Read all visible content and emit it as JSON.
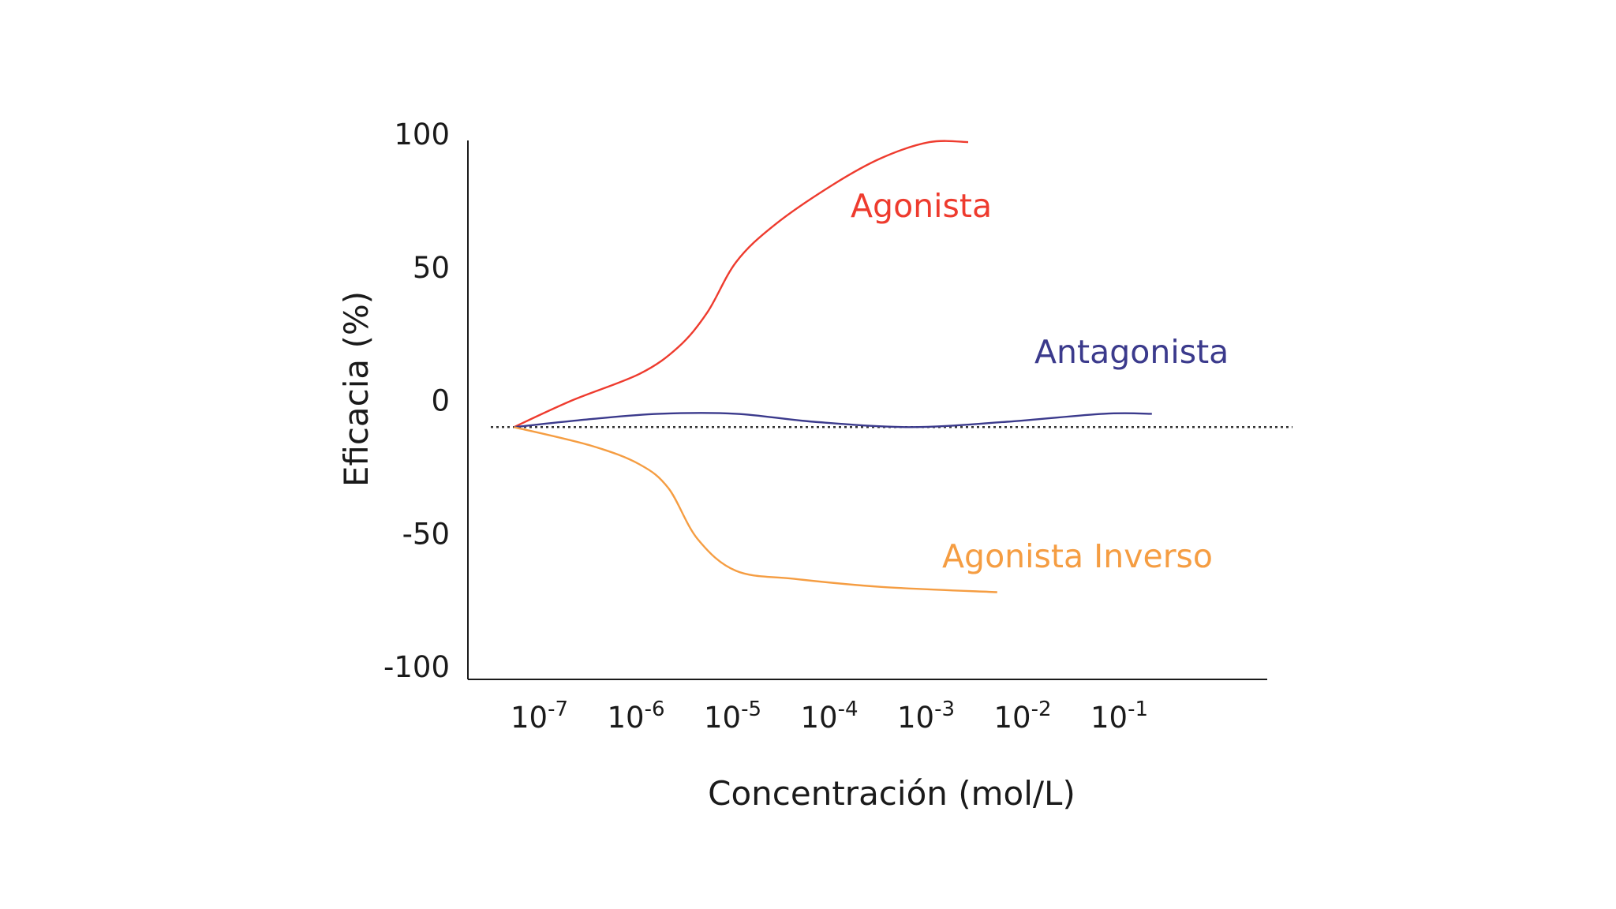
{
  "chart_data": {
    "type": "line",
    "xlabel": "Concentración (mol/L)",
    "ylabel": "Eficacia (%)",
    "x_scale": "log",
    "ylim": [
      -100,
      100
    ],
    "yticks": [
      100,
      50,
      0,
      -50,
      -100
    ],
    "xticks": [
      {
        "base": "10",
        "exp": "-7"
      },
      {
        "base": "10",
        "exp": "-6"
      },
      {
        "base": "10",
        "exp": "-5"
      },
      {
        "base": "10",
        "exp": "-4"
      },
      {
        "base": "10",
        "exp": "-3"
      },
      {
        "base": "10",
        "exp": "-2"
      },
      {
        "base": "10",
        "exp": "-1"
      }
    ],
    "grid": false,
    "baseline": {
      "y": -10,
      "style": "dotted",
      "color": "#333333"
    },
    "series": [
      {
        "name": "Agonista",
        "color": "#ee3b2e",
        "points": [
          {
            "x": -7.3,
            "y": -10
          },
          {
            "x": -6.7,
            "y": 0
          },
          {
            "x": -6.0,
            "y": 10
          },
          {
            "x": -5.6,
            "y": 20
          },
          {
            "x": -5.3,
            "y": 33
          },
          {
            "x": -5.0,
            "y": 52
          },
          {
            "x": -4.6,
            "y": 66
          },
          {
            "x": -4.0,
            "y": 81
          },
          {
            "x": -3.5,
            "y": 91
          },
          {
            "x": -3.0,
            "y": 97
          },
          {
            "x": -2.6,
            "y": 97
          }
        ]
      },
      {
        "name": "Antagonista",
        "color": "#3b3a8c",
        "points": [
          {
            "x": -7.3,
            "y": -10
          },
          {
            "x": -6.5,
            "y": -7
          },
          {
            "x": -5.8,
            "y": -5
          },
          {
            "x": -5.0,
            "y": -5
          },
          {
            "x": -4.2,
            "y": -8
          },
          {
            "x": -3.2,
            "y": -10
          },
          {
            "x": -2.2,
            "y": -8
          },
          {
            "x": -1.2,
            "y": -5
          },
          {
            "x": -0.7,
            "y": -5
          }
        ]
      },
      {
        "name": "Agonista Inverso",
        "color": "#f59d42",
        "points": [
          {
            "x": -7.3,
            "y": -10
          },
          {
            "x": -6.5,
            "y": -17
          },
          {
            "x": -6.0,
            "y": -24
          },
          {
            "x": -5.7,
            "y": -33
          },
          {
            "x": -5.4,
            "y": -52
          },
          {
            "x": -5.0,
            "y": -64
          },
          {
            "x": -4.4,
            "y": -67
          },
          {
            "x": -3.5,
            "y": -70
          },
          {
            "x": -2.3,
            "y": -72
          }
        ]
      }
    ]
  }
}
